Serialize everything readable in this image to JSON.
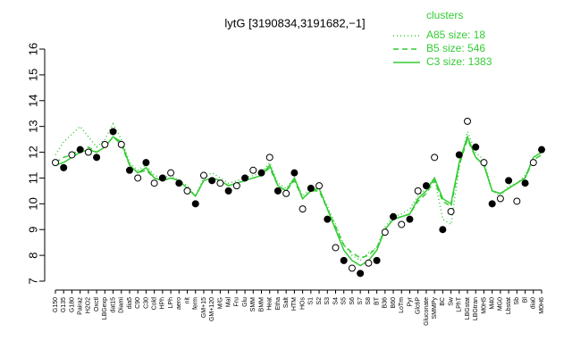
{
  "chart_data": {
    "type": "line",
    "title": "lytG [3190834,3191682,−1]",
    "legend_title": "clusters",
    "legend_position": "top-right",
    "categories": [
      "G150",
      "G135",
      "G180",
      "Pairaz",
      "H2O2",
      "Oxctl",
      "LBGexp",
      "dat15",
      "Diami",
      "dia5",
      "C90",
      "C30",
      "Cold",
      "HPh",
      "LPh",
      "aero",
      "nit",
      "ferm",
      "GM+15",
      "GM+120",
      "M/G",
      "Mal",
      "Fru",
      "Glu",
      "SMM",
      "BMM",
      "Heat",
      "Etha",
      "Salt",
      "HTM",
      "HOs",
      "S1",
      "S2",
      "S3",
      "S4",
      "S5",
      "S6",
      "S7",
      "S8",
      "BT",
      "B36",
      "B60",
      "LoTm",
      "Pyr",
      "Glc6P",
      "Gluconate",
      "SMMPy",
      "BC",
      "Sw",
      "LPhT",
      "LBGstat",
      "LBGtran",
      "M0H5",
      "M40",
      "MG0",
      "Lbstat",
      "Sb",
      "Bl",
      "dia0",
      "M0H6"
    ],
    "series": [
      {
        "name": "A85 size: 18",
        "color": "#33cc33",
        "dash": "1,3",
        "values": [
          11.9,
          12.4,
          12.7,
          13.0,
          12.6,
          12.2,
          12.5,
          13.1,
          12.5,
          11.6,
          11.3,
          11.5,
          11.1,
          11.0,
          11.1,
          10.9,
          10.7,
          10.3,
          11.0,
          11.2,
          11.0,
          10.8,
          10.9,
          11.0,
          11.1,
          11.2,
          11.6,
          10.8,
          10.6,
          11.0,
          10.3,
          10.6,
          10.6,
          9.9,
          9.2,
          8.4,
          8.0,
          7.8,
          8.1,
          8.3,
          9.1,
          9.5,
          9.6,
          9.8,
          10.3,
          10.6,
          11.0,
          9.4,
          9.2,
          11.4,
          12.8,
          12.0,
          11.7,
          10.5,
          10.3,
          10.7,
          10.8,
          11.1,
          11.7,
          11.9
        ]
      },
      {
        "name": "B5 size: 546",
        "color": "#33cc33",
        "dash": "6,4",
        "values": [
          11.6,
          11.8,
          11.9,
          12.1,
          12.2,
          12.0,
          12.2,
          12.6,
          12.3,
          11.5,
          11.2,
          11.3,
          11.0,
          10.9,
          11.0,
          10.9,
          10.6,
          10.3,
          10.9,
          11.0,
          10.9,
          10.7,
          10.8,
          10.9,
          11.0,
          11.1,
          11.4,
          10.7,
          10.5,
          10.9,
          10.2,
          10.5,
          10.5,
          9.8,
          9.1,
          8.4,
          8.1,
          7.9,
          8.0,
          8.3,
          9.0,
          9.4,
          9.5,
          9.6,
          10.1,
          10.4,
          10.9,
          10.1,
          9.9,
          11.5,
          12.5,
          11.8,
          11.5,
          10.5,
          10.4,
          10.6,
          10.8,
          11.0,
          11.7,
          11.9
        ]
      },
      {
        "name": "C3 size: 1383",
        "color": "#33cc33",
        "dash": "",
        "values": [
          11.5,
          11.6,
          11.8,
          12.0,
          12.1,
          12.0,
          12.2,
          12.6,
          12.4,
          11.5,
          11.2,
          11.4,
          11.0,
          10.9,
          11.0,
          10.9,
          10.6,
          10.3,
          10.9,
          11.0,
          10.9,
          10.7,
          10.8,
          10.9,
          11.0,
          11.1,
          11.5,
          10.7,
          10.5,
          11.0,
          10.2,
          10.5,
          10.6,
          9.8,
          9.0,
          8.2,
          7.8,
          7.6,
          7.8,
          8.2,
          9.0,
          9.4,
          9.5,
          9.6,
          10.2,
          10.5,
          11.0,
          10.2,
          10.0,
          11.6,
          12.6,
          11.8,
          11.5,
          10.5,
          10.4,
          10.6,
          10.8,
          11.0,
          11.8,
          12.0
        ]
      }
    ],
    "points": [
      11.6,
      11.4,
      11.9,
      12.1,
      12.0,
      11.8,
      12.3,
      12.8,
      12.3,
      11.3,
      11.0,
      11.6,
      10.8,
      11.0,
      11.2,
      10.8,
      10.5,
      10.0,
      11.1,
      10.9,
      10.8,
      10.5,
      10.7,
      11.0,
      11.3,
      11.2,
      11.8,
      10.5,
      10.4,
      11.2,
      9.8,
      10.6,
      10.7,
      9.4,
      8.3,
      7.8,
      7.5,
      7.3,
      7.7,
      7.8,
      8.9,
      9.5,
      9.2,
      9.4,
      10.5,
      10.7,
      11.8,
      9.0,
      9.7,
      11.9,
      13.2,
      12.2,
      11.6,
      10.0,
      10.2,
      10.9,
      10.1,
      10.8,
      11.6,
      12.1
    ],
    "ylim": [
      7,
      16
    ],
    "yticks": [
      7,
      8,
      9,
      10,
      11,
      12,
      13,
      14,
      15,
      16
    ]
  }
}
